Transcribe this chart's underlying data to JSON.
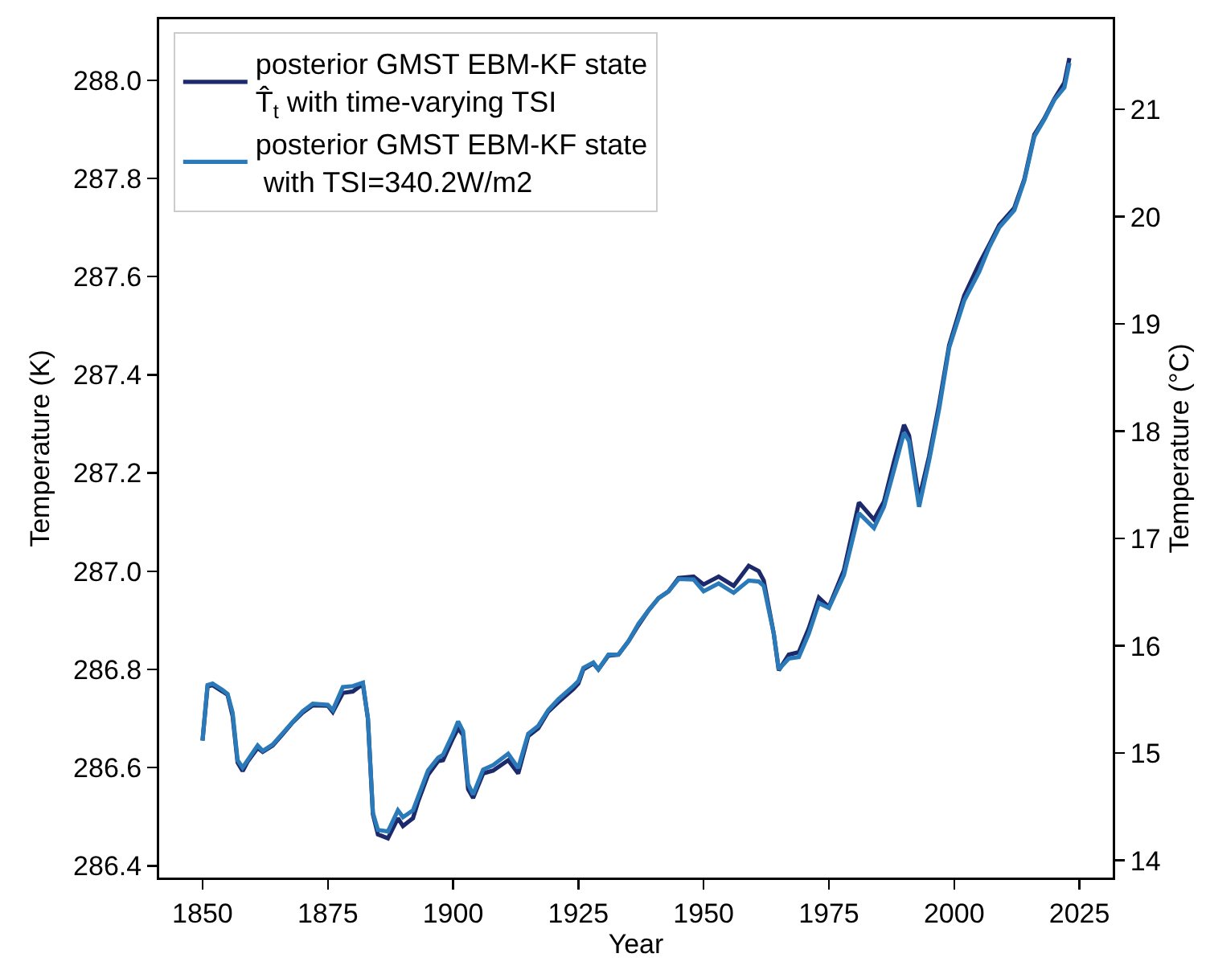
{
  "chart_data": {
    "type": "line",
    "xlabel": "Year",
    "ylabel": "Temperature (K)",
    "y2label": "Temperature (°C)",
    "x": [
      1850,
      1851,
      1852,
      1854,
      1855,
      1856,
      1857,
      1858,
      1859,
      1861,
      1862,
      1864,
      1866,
      1868,
      1870,
      1872,
      1875,
      1876,
      1878,
      1880,
      1882,
      1883,
      1884,
      1885,
      1887,
      1889,
      1890,
      1892,
      1893,
      1895,
      1897,
      1898,
      1900,
      1901,
      1902,
      1903,
      1904,
      1906,
      1908,
      1911,
      1913,
      1915,
      1917,
      1919,
      1921,
      1924,
      1925,
      1926,
      1928,
      1929,
      1931,
      1933,
      1935,
      1937,
      1939,
      1941,
      1943,
      1945,
      1948,
      1950,
      1953,
      1956,
      1959,
      1961,
      1962,
      1964,
      1965,
      1967,
      1969,
      1971,
      1973,
      1975,
      1978,
      1981,
      1984,
      1986,
      1988,
      1990,
      1991,
      1993,
      1995,
      1997,
      1999,
      2002,
      2005,
      2007,
      2009,
      2012,
      2014,
      2016,
      2018,
      2020,
      2022,
      2023
    ],
    "series": [
      {
        "name": "posterior GMST EBM-KF state\nT̂$_{t}$ with time-varying TSI",
        "color": "#1c2a6c",
        "values": [
          286.655,
          286.765,
          286.768,
          286.755,
          286.748,
          286.705,
          286.61,
          286.593,
          286.612,
          286.64,
          286.632,
          286.645,
          286.668,
          286.692,
          286.712,
          286.727,
          286.726,
          286.713,
          286.752,
          286.755,
          286.77,
          286.7,
          286.505,
          286.464,
          286.456,
          286.497,
          286.481,
          286.497,
          286.53,
          286.585,
          286.613,
          286.615,
          286.66,
          286.68,
          286.666,
          286.556,
          286.538,
          286.588,
          286.594,
          286.615,
          286.588,
          286.664,
          286.68,
          286.714,
          286.733,
          286.76,
          286.771,
          286.8,
          286.812,
          286.8,
          286.828,
          286.83,
          286.857,
          286.89,
          286.92,
          286.945,
          286.959,
          286.986,
          286.989,
          286.973,
          286.989,
          286.97,
          287.011,
          287.0,
          286.981,
          286.873,
          286.798,
          286.83,
          286.835,
          286.884,
          286.946,
          286.927,
          287.002,
          287.14,
          287.105,
          287.142,
          287.223,
          287.298,
          287.276,
          287.147,
          287.234,
          287.34,
          287.46,
          287.561,
          287.626,
          287.665,
          287.705,
          287.74,
          287.798,
          287.889,
          287.922,
          287.962,
          287.995,
          288.045
        ]
      },
      {
        "name": "posterior GMST EBM-KF state\n with TSI=340.2W/m2",
        "color": "#2a7ab9",
        "values": [
          286.655,
          286.768,
          286.771,
          286.758,
          286.75,
          286.712,
          286.615,
          286.6,
          286.615,
          286.645,
          286.634,
          286.647,
          286.67,
          286.693,
          286.715,
          286.73,
          286.728,
          286.717,
          286.764,
          286.766,
          286.773,
          286.701,
          286.508,
          286.473,
          286.47,
          286.513,
          286.499,
          286.513,
          286.54,
          286.594,
          286.62,
          286.626,
          286.669,
          286.694,
          286.674,
          286.567,
          286.545,
          286.596,
          286.605,
          286.628,
          286.599,
          286.669,
          286.685,
          286.717,
          286.739,
          286.766,
          286.776,
          286.803,
          286.814,
          286.8,
          286.83,
          286.83,
          286.857,
          286.893,
          286.92,
          286.945,
          286.959,
          286.984,
          286.983,
          286.959,
          286.975,
          286.956,
          286.981,
          286.979,
          286.97,
          286.873,
          286.8,
          286.822,
          286.825,
          286.873,
          286.935,
          286.925,
          286.992,
          287.118,
          287.088,
          287.131,
          287.206,
          287.282,
          287.265,
          287.131,
          287.225,
          287.33,
          287.455,
          287.551,
          287.61,
          287.66,
          287.7,
          287.735,
          287.795,
          287.885,
          287.92,
          287.96,
          287.985,
          288.035
        ]
      }
    ],
    "xlim": [
      1841.35,
      2031.65
    ],
    "xticks": [
      1850,
      1875,
      1900,
      1925,
      1950,
      1975,
      2000,
      2025
    ],
    "ylim": [
      286.376,
      288.124
    ],
    "yticks": [
      286.4,
      286.6,
      286.8,
      {
        "value": 287.0,
        "label": "287.0"
      },
      287.2,
      287.4,
      287.6,
      287.8,
      {
        "value": 288.0,
        "label": "288.0"
      }
    ],
    "y2lim": [
      13.84,
      21.84
    ],
    "y2ticks": [
      14,
      15,
      16,
      17,
      18,
      19,
      20,
      21
    ],
    "legend": "top left",
    "grid": false
  }
}
